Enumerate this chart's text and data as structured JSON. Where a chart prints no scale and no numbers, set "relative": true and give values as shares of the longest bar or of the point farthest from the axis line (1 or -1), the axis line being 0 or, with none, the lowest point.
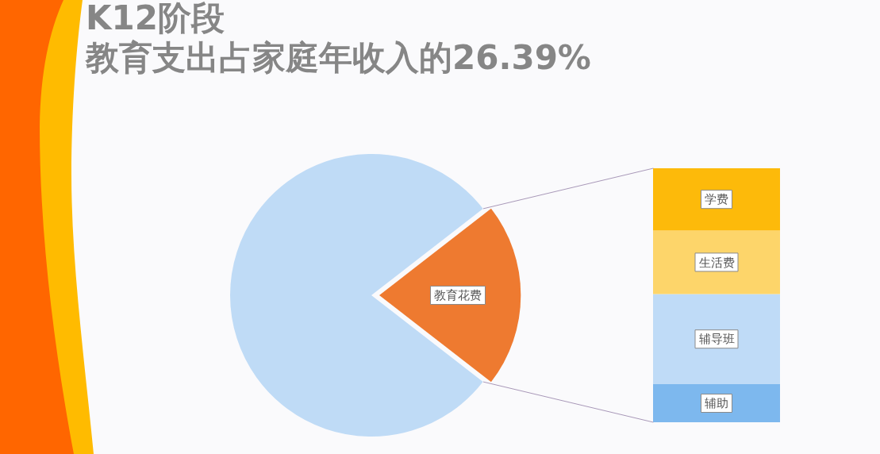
{
  "chart_data": [
    {
      "type": "pie",
      "title": "K12阶段",
      "subtitle": "教育支出占家庭年收入的26.39%",
      "categories": [
        null,
        "教育花费"
      ],
      "values": [
        79,
        21
      ],
      "colors": [
        "#bfdbf6",
        "#ee7a30"
      ]
    },
    {
      "type": "bar",
      "stacked": true,
      "relative": true,
      "categories": [
        null
      ],
      "series": [
        {
          "name": "辅助",
          "color": "#7db8ee",
          "values": [
            0.15
          ]
        },
        {
          "name": "辅导班",
          "color": "#bfdbf7",
          "values": [
            0.355
          ]
        },
        {
          "name": "生活费",
          "color": "#fdd56a",
          "values": [
            0.25
          ]
        },
        {
          "name": "学费",
          "color": "#fdba0a",
          "values": [
            0.245
          ]
        }
      ]
    }
  ]
}
